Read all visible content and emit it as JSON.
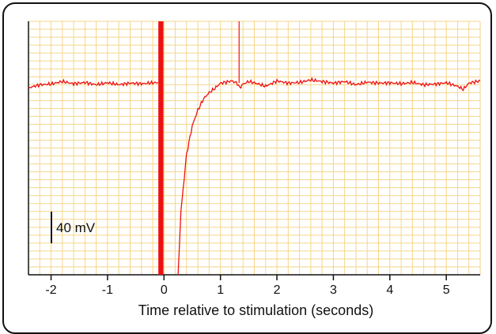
{
  "chart_data": {
    "type": "line",
    "title": "",
    "xlabel": "Time relative to stimulation (seconds)",
    "ylabel": "",
    "xlim": [
      -2.4,
      5.6
    ],
    "ylim": [
      -6.0,
      2.0
    ],
    "x_ticks": [
      "-2",
      "-1",
      "0",
      "1",
      "2",
      "3",
      "4",
      "5"
    ],
    "grid": true,
    "scale_bar": {
      "label": "40 mV",
      "value": 1.0
    },
    "stimulus": {
      "x_start": -0.1,
      "x_end": -0.01
    },
    "spike": {
      "x": 1.33,
      "y_top": 2.0
    },
    "series": [
      {
        "x": [
          -2.4,
          -2.2,
          -2.0,
          -1.8,
          -1.6,
          -1.4,
          -1.2,
          -1.0,
          -0.8,
          -0.6,
          -0.4,
          -0.2,
          -0.1,
          0.25,
          0.3,
          0.4,
          0.5,
          0.6,
          0.7,
          0.8,
          0.9,
          1.0,
          1.1,
          1.2,
          1.3,
          1.34,
          1.4,
          1.5,
          1.6,
          1.8,
          2.0,
          2.2,
          2.4,
          2.6,
          2.8,
          3.0,
          3.2,
          3.4,
          3.6,
          3.8,
          4.0,
          4.2,
          4.4,
          4.6,
          4.8,
          5.0,
          5.2,
          5.3,
          5.4,
          5.6
        ],
        "y": [
          -0.1,
          0.0,
          0.02,
          0.1,
          0.03,
          0.07,
          0.0,
          0.06,
          0.0,
          0.05,
          0.03,
          0.06,
          0.06,
          -6.0,
          -4.0,
          -2.2,
          -1.3,
          -0.8,
          -0.45,
          -0.25,
          -0.12,
          0.05,
          0.08,
          0.12,
          0.04,
          -0.1,
          0.02,
          0.1,
          0.06,
          -0.05,
          0.12,
          0.05,
          0.07,
          0.15,
          0.1,
          0.05,
          0.1,
          0.0,
          0.08,
          0.05,
          0.06,
          0.03,
          0.07,
          0.0,
          0.02,
          0.06,
          -0.05,
          -0.15,
          0.05,
          0.12
        ]
      }
    ],
    "colors": {
      "trace": "#ee1111",
      "grid": "#f5d68a",
      "axis": "#111111",
      "stimulus": "#ee1111"
    }
  }
}
